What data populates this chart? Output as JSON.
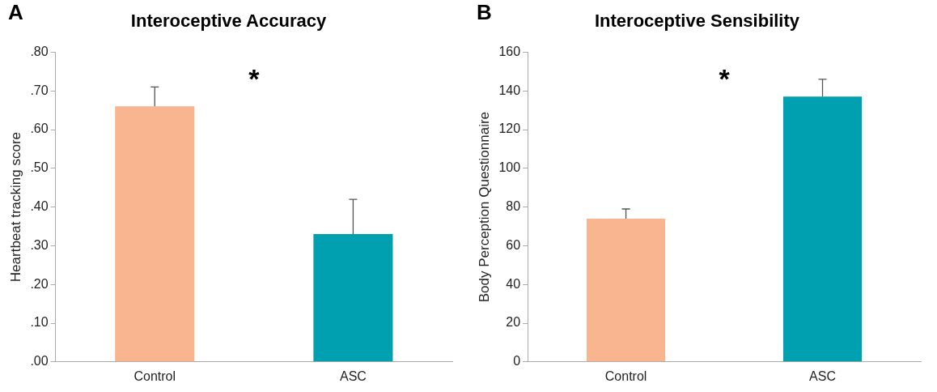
{
  "chart_data": [
    {
      "type": "bar",
      "title": "Interoceptive Accuracy",
      "ylabel": "Heartbeat tracking score",
      "categories": [
        "Control",
        "ASC"
      ],
      "values": [
        0.66,
        0.33
      ],
      "colors": [
        "#f9b58f",
        "#00a0b0"
      ],
      "errors": [
        [
          0.66,
          0.71
        ],
        [
          0.33,
          0.42
        ]
      ],
      "ylim": [
        0,
        0.8
      ],
      "yticks": [
        {
          "value": 0,
          "label": ".00"
        },
        {
          "value": 0.1,
          "label": ".10"
        },
        {
          "value": 0.2,
          "label": ".20"
        },
        {
          "value": 0.3,
          "label": ".30"
        },
        {
          "value": 0.4,
          "label": ".40"
        },
        {
          "value": 0.5,
          "label": ".50"
        },
        {
          "value": 0.6,
          "label": ".60"
        },
        {
          "value": 0.7,
          "label": ".70"
        },
        {
          "value": 0.8,
          "label": ".80"
        }
      ],
      "grid": false,
      "legend": false,
      "annotations": [
        "A",
        "*"
      ]
    },
    {
      "type": "bar",
      "title": "Interoceptive Sensibility",
      "ylabel": "Body Perception Questionnaire",
      "categories": [
        "Control",
        "ASC"
      ],
      "values": [
        74,
        137
      ],
      "colors": [
        "#f9b58f",
        "#00a0b0"
      ],
      "errors": [
        [
          74,
          79
        ],
        [
          137,
          146
        ]
      ],
      "ylim": [
        0,
        160
      ],
      "yticks": [
        0,
        20,
        40,
        60,
        80,
        100,
        120,
        140,
        160
      ],
      "grid": false,
      "legend": false,
      "annotations": [
        "B",
        "*"
      ]
    }
  ]
}
